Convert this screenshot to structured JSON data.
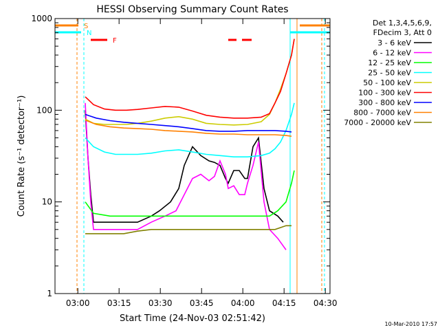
{
  "chart_data": {
    "type": "line",
    "title": "HESSI Observing Summary Count Rates",
    "xlabel": "Start Time (24-Nov-03 02:51:42)",
    "ylabel": "Count Rate (s⁻¹ detector⁻¹)",
    "x_unit": "minutes after 02:51:42",
    "xlim": [
      0,
      100
    ],
    "ylim": [
      1,
      1000
    ],
    "y_scale": "log",
    "grid": false,
    "xticks": [
      {
        "label": "03:00",
        "value": 8.3
      },
      {
        "label": "03:15",
        "value": 23.3
      },
      {
        "label": "03:30",
        "value": 38.3
      },
      {
        "label": "03:45",
        "value": 53.3
      },
      {
        "label": "04:00",
        "value": 68.3
      },
      {
        "label": "04:15",
        "value": 83.3
      },
      {
        "label": "04:30",
        "value": 98.3
      }
    ],
    "yticks": [
      {
        "label": "1",
        "value": 1
      },
      {
        "label": "10",
        "value": 10
      },
      {
        "label": "100",
        "value": 100
      },
      {
        "label": "1000",
        "value": 1000
      }
    ],
    "legend_header": [
      "Det 1,3,4,5,6,9,",
      "FDecim 3, Att 0"
    ],
    "legend_placement": "right",
    "series": [
      {
        "name": "3 - 6 keV",
        "color": "#000000",
        "x": [
          11,
          12,
          13,
          14,
          16,
          20,
          25,
          30,
          35,
          38,
          42,
          45,
          47,
          50,
          53,
          56,
          58,
          60,
          62,
          63,
          65,
          67,
          69,
          70,
          72,
          74,
          76,
          78,
          81,
          83
        ],
        "y": [
          100,
          30,
          12,
          6,
          6,
          6,
          6,
          6,
          7,
          8,
          10,
          14,
          25,
          40,
          32,
          28,
          27,
          25,
          18,
          16,
          22,
          22,
          18,
          18,
          40,
          50,
          14,
          8,
          7,
          6
        ]
      },
      {
        "name": "6 - 12 keV",
        "color": "#ff00ff",
        "x": [
          11,
          12,
          13,
          14,
          15,
          17,
          20,
          25,
          30,
          35,
          40,
          44,
          47,
          50,
          53,
          56,
          58,
          60,
          62,
          63,
          65,
          67,
          69,
          70,
          72,
          74,
          76,
          78,
          81,
          84
        ],
        "y": [
          120,
          30,
          10,
          5,
          5,
          5,
          5,
          5,
          5,
          6,
          7,
          8,
          12,
          18,
          20,
          17,
          19,
          28,
          20,
          14,
          15,
          12,
          12,
          16,
          25,
          45,
          10,
          5,
          4,
          3
        ]
      },
      {
        "name": "12 - 25 keV",
        "color": "#00ff00",
        "x": [
          11,
          14,
          20,
          30,
          40,
          50,
          60,
          70,
          75,
          78,
          81,
          84,
          86,
          87
        ],
        "y": [
          10,
          7.5,
          7,
          7,
          7,
          7,
          7,
          7,
          7,
          7,
          8,
          10,
          16,
          22
        ]
      },
      {
        "name": "25 - 50 keV",
        "color": "#00ffff",
        "x": [
          11,
          14,
          18,
          22,
          26,
          30,
          35,
          40,
          45,
          50,
          55,
          60,
          65,
          70,
          75,
          78,
          80,
          82,
          84,
          86,
          87
        ],
        "y": [
          50,
          40,
          35,
          33,
          33,
          33,
          34,
          36,
          37,
          35,
          33,
          32,
          31,
          31,
          32,
          34,
          38,
          45,
          60,
          90,
          120
        ]
      },
      {
        "name": "50 - 100 keV",
        "color": "#cccc00",
        "x": [
          11,
          14,
          18,
          22,
          26,
          30,
          35,
          40,
          45,
          50,
          55,
          60,
          65,
          70,
          75,
          78,
          80,
          82,
          84,
          86,
          87
        ],
        "y": [
          80,
          72,
          70,
          70,
          70,
          72,
          76,
          82,
          85,
          80,
          72,
          70,
          69,
          70,
          75,
          90,
          120,
          170,
          250,
          400,
          600
        ]
      },
      {
        "name": "100 - 300 keV",
        "color": "#ff0000",
        "x": [
          11,
          14,
          18,
          22,
          26,
          30,
          35,
          40,
          45,
          50,
          55,
          60,
          65,
          70,
          75,
          78,
          80,
          82,
          84,
          86,
          87
        ],
        "y": [
          140,
          115,
          103,
          100,
          100,
          102,
          106,
          110,
          108,
          98,
          88,
          84,
          82,
          82,
          84,
          92,
          120,
          160,
          250,
          400,
          600
        ]
      },
      {
        "name": "300 - 800 keV",
        "color": "#0000ff",
        "x": [
          11,
          15,
          20,
          25,
          30,
          35,
          40,
          45,
          50,
          55,
          60,
          65,
          70,
          75,
          80,
          84,
          86
        ],
        "y": [
          90,
          82,
          77,
          74,
          72,
          70,
          68,
          66,
          63,
          60,
          59,
          59,
          60,
          60,
          60,
          59,
          58
        ]
      },
      {
        "name": "800 - 7000 keV",
        "color": "#ff8000",
        "x": [
          11,
          15,
          20,
          25,
          30,
          35,
          40,
          45,
          50,
          55,
          60,
          65,
          70,
          75,
          80,
          84,
          86
        ],
        "y": [
          78,
          70,
          66,
          64,
          63,
          62,
          60,
          59,
          58,
          56,
          55,
          55,
          54,
          54,
          54,
          53,
          52
        ]
      },
      {
        "name": "7000 - 20000 keV",
        "color": "#808000",
        "x": [
          11,
          15,
          20,
          25,
          30,
          35,
          40,
          45,
          50,
          55,
          60,
          65,
          70,
          75,
          80,
          84,
          86
        ],
        "y": [
          4.5,
          4.5,
          4.5,
          4.5,
          4.8,
          5,
          5,
          5,
          5,
          5,
          5,
          5,
          5,
          5,
          5,
          5.5,
          5.5
        ]
      }
    ],
    "flag_markers": [
      {
        "label": "S",
        "color": "#ff8000",
        "segments": [
          [
            0,
            8.5
          ],
          [
            89,
            100
          ]
        ]
      },
      {
        "label": "N",
        "color": "#00ffff",
        "segments": [
          [
            0,
            9.5
          ],
          [
            85.5,
            100
          ]
        ]
      },
      {
        "label": "F",
        "color": "#ff0000",
        "segments": [
          [
            13,
            19
          ],
          [
            63,
            66
          ],
          [
            68,
            71.5
          ]
        ]
      }
    ],
    "vertical_lines": [
      {
        "x": 8.0,
        "color": "#ff8000",
        "style": "dashed"
      },
      {
        "x": 10.5,
        "color": "#00ffff",
        "style": "dashed"
      },
      {
        "x": 85.5,
        "color": "#00ffff",
        "style": "solid"
      },
      {
        "x": 88.0,
        "color": "#ff8000",
        "style": "solid"
      },
      {
        "x": 97.0,
        "color": "#ff8000",
        "style": "dashed"
      },
      {
        "x": 98.0,
        "color": "#00ffff",
        "style": "dashed"
      }
    ],
    "timestamp": "10-Mar-2010 17:57"
  }
}
